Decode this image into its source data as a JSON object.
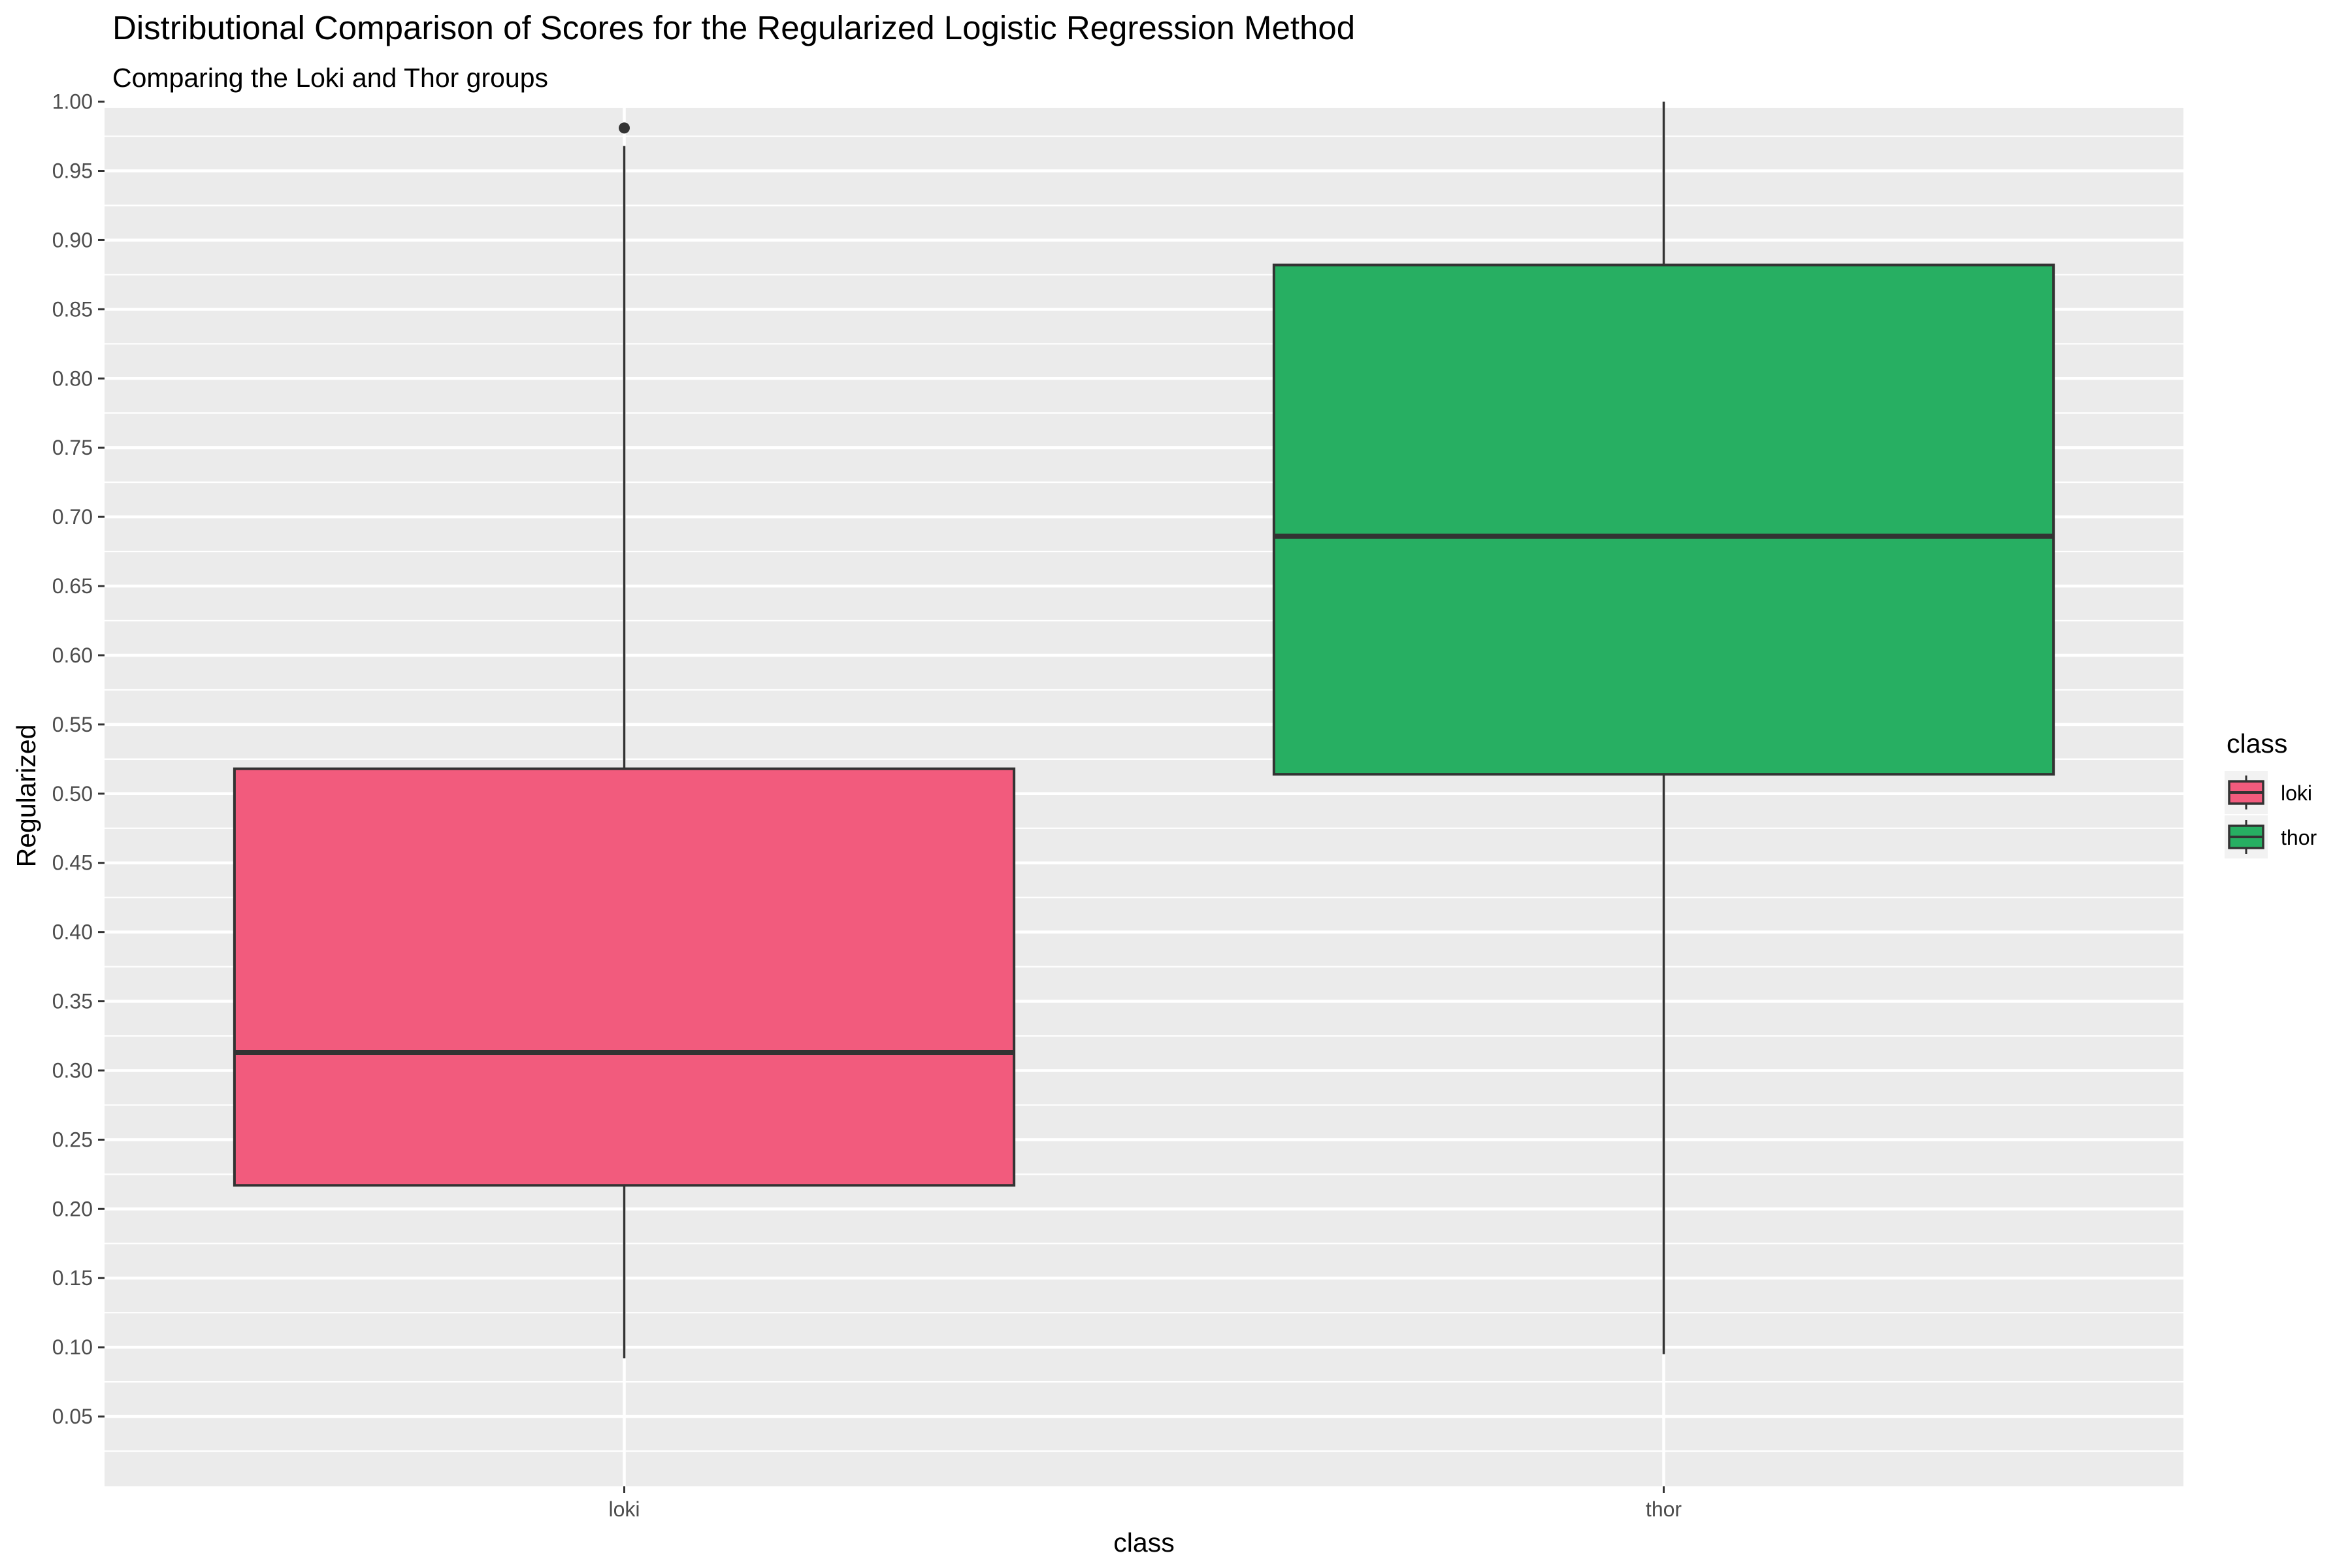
{
  "chart_data": {
    "type": "boxplot",
    "title": "Distributional Comparison of Scores for the Regularized Logistic Regression Method",
    "subtitle": "Comparing the Loki and Thor groups",
    "xlabel": "class",
    "ylabel": "Regularized",
    "ylim": [
      0.05,
      1.0
    ],
    "yticks": [
      "0.05",
      "0.10",
      "0.15",
      "0.20",
      "0.25",
      "0.30",
      "0.35",
      "0.40",
      "0.45",
      "0.50",
      "0.55",
      "0.60",
      "0.65",
      "0.70",
      "0.75",
      "0.80",
      "0.85",
      "0.90",
      "0.95",
      "1.00"
    ],
    "categories": [
      "loki",
      "thor"
    ],
    "boxes": [
      {
        "category": "loki",
        "whisker_low": 0.092,
        "q1": 0.217,
        "median": 0.313,
        "q3": 0.518,
        "whisker_high": 0.968,
        "outliers": [
          0.981
        ],
        "color": "#f25b7d"
      },
      {
        "category": "thor",
        "whisker_low": 0.095,
        "q1": 0.514,
        "median": 0.686,
        "q3": 0.882,
        "whisker_high": 1.0,
        "outliers": [],
        "color": "#27af62"
      }
    ],
    "legend": {
      "title": "class",
      "position": "right",
      "entries": [
        "loki",
        "thor"
      ]
    },
    "grid": true,
    "panel_color": "#ebebeb",
    "outline_color": "#333333"
  }
}
